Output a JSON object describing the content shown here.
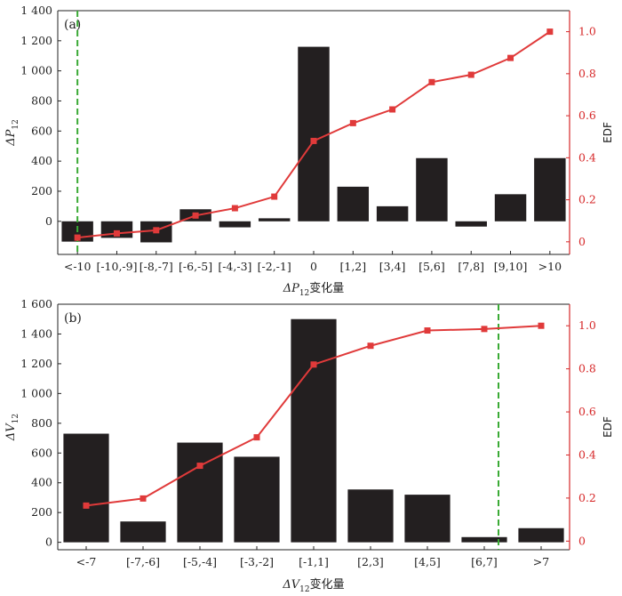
{
  "chart_data": [
    {
      "type": "bar",
      "panel_label": "(a)",
      "categories": [
        "<-10",
        "[-10,-9]",
        "[-8,-7]",
        "[-6,-5]",
        "[-4,-3]",
        "[-2,-1]",
        "0",
        "[1,2]",
        "[3,4]",
        "[5,6]",
        "[7,8]",
        "[9,10]",
        ">10"
      ],
      "values": [
        -135,
        -110,
        -140,
        80,
        -40,
        20,
        1160,
        230,
        100,
        420,
        -35,
        180,
        420
      ],
      "ylim": [
        -220,
        1400
      ],
      "yticks": [
        0,
        200,
        400,
        600,
        800,
        1000,
        1200,
        1400
      ],
      "ytick_labels": [
        "0",
        "200",
        "400",
        "600",
        "800",
        "1 000",
        "1 200",
        "1 400"
      ],
      "ylabel_main": "ΔP",
      "ylabel_sub": "12",
      "xlabel_main": "ΔP",
      "xlabel_sub": "12",
      "xlabel_suffix": "变化量",
      "dashed_line_x": 0.5,
      "edf": {
        "name": "EDF",
        "values": [
          0.02,
          0.04,
          0.055,
          0.125,
          0.16,
          0.215,
          0.48,
          0.565,
          0.63,
          0.76,
          0.795,
          0.875,
          1.0
        ],
        "ylim": [
          -0.06,
          1.1
        ],
        "yticks": [
          0,
          0.2,
          0.4,
          0.6,
          0.8,
          1.0
        ],
        "ytick_labels": [
          "0",
          "0.2",
          "0.4",
          "0.6",
          "0.8",
          "1.0"
        ],
        "ylabel": "EDF"
      }
    },
    {
      "type": "bar",
      "panel_label": "(b)",
      "categories": [
        "<-7",
        "[-7,-6]",
        "[-5,-4]",
        "[-3,-2]",
        "[-1,1]",
        "[2,3]",
        "[4,5]",
        "[6,7]",
        ">7"
      ],
      "values": [
        730,
        140,
        670,
        575,
        1500,
        355,
        320,
        35,
        95
      ],
      "ylim": [
        -50,
        1600
      ],
      "yticks": [
        0,
        200,
        400,
        600,
        800,
        1000,
        1200,
        1400,
        1600
      ],
      "ytick_labels": [
        "0",
        "200",
        "400",
        "600",
        "800",
        "1 000",
        "1 200",
        "1 400",
        "1 600"
      ],
      "ylabel_main": "ΔV",
      "ylabel_sub": "12",
      "xlabel_main": "ΔV",
      "xlabel_sub": "12",
      "xlabel_suffix": "变化量",
      "dashed_line_x": 7.75,
      "edf": {
        "name": "EDF",
        "values": [
          0.165,
          0.198,
          0.35,
          0.482,
          0.82,
          0.907,
          0.978,
          0.985,
          1.0
        ],
        "ylim": [
          -0.04,
          1.1
        ],
        "yticks": [
          0,
          0.2,
          0.4,
          0.6,
          0.8,
          1.0
        ],
        "ytick_labels": [
          "0",
          "0.2",
          "0.4",
          "0.6",
          "0.8",
          "1.0"
        ],
        "ylabel": "EDF"
      }
    }
  ],
  "colors": {
    "bar": "#231f20",
    "edf_line": "#e03a3a",
    "dashed": "#3aaa35",
    "axis": "#222222",
    "right_axis": "#d62728"
  }
}
